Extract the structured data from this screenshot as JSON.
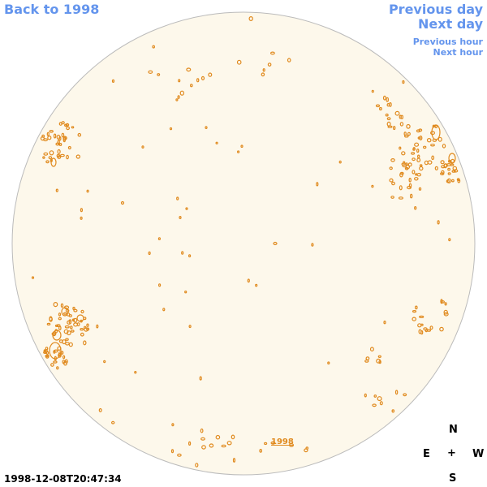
{
  "nav": {
    "back_label": "Back to 1998",
    "previous_day": "Previous day",
    "next_day": "Next day",
    "previous_hour": "Previous hour",
    "next_hour": "Next hour"
  },
  "compass": {
    "north": "N",
    "east": "E",
    "center": "+",
    "west": "W",
    "south": "S"
  },
  "timestamp": "1998-12-08T20:47:34",
  "disk_link": "1998",
  "colors": {
    "link": "#6495ed",
    "disk_fill": "#fdf8eb",
    "contour": "#e08a1e",
    "disk_border": "#bbbbbb"
  }
}
